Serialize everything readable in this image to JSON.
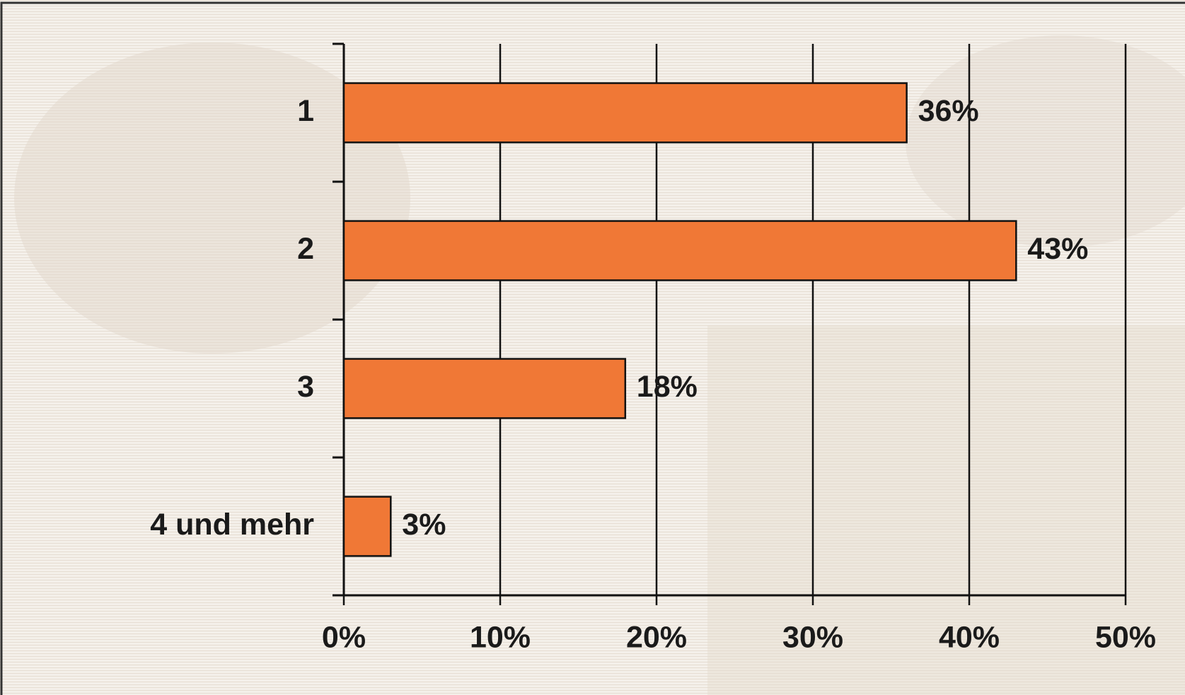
{
  "chart_data": {
    "type": "bar",
    "orientation": "horizontal",
    "categories": [
      "1",
      "2",
      "3",
      "4 und mehr"
    ],
    "values": [
      36,
      43,
      18,
      3
    ],
    "value_labels": [
      "36%",
      "43%",
      "18%",
      "3%"
    ],
    "color": "#f07836",
    "xlim": [
      0,
      50
    ],
    "xticks": [
      {
        "value": 0,
        "label": "0%"
      },
      {
        "value": 10,
        "label": "10%"
      },
      {
        "value": 20,
        "label": "20%"
      },
      {
        "value": 30,
        "label": "30%"
      },
      {
        "value": 40,
        "label": "40%"
      },
      {
        "value": 50,
        "label": "50%"
      }
    ],
    "grid": true
  }
}
